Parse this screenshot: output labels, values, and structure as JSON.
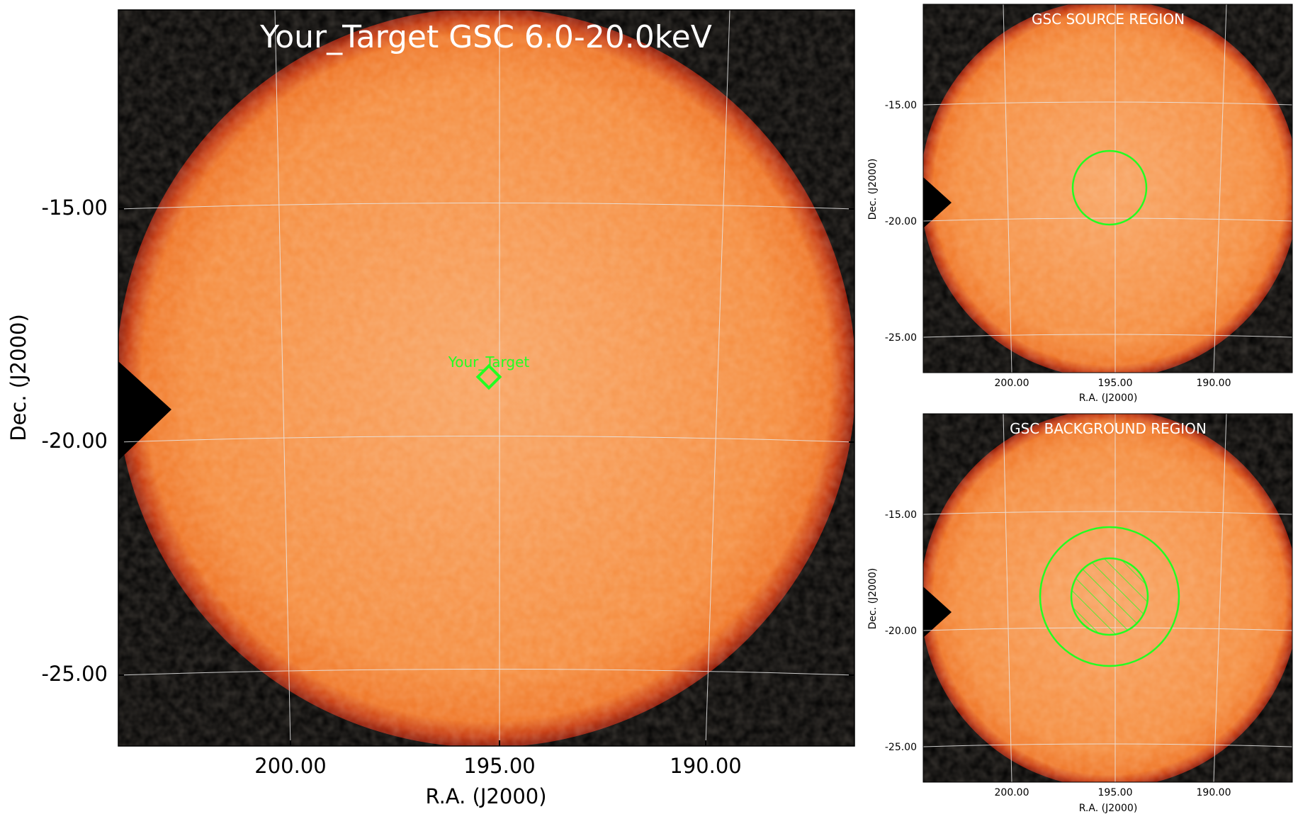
{
  "main_panel": {
    "title": "Your_Target GSC 6.0-20.0keV",
    "xlabel": "R.A. (J2000)",
    "ylabel": "Dec. (J2000)",
    "x_ticks": [
      "200.00",
      "195.00",
      "190.00"
    ],
    "y_ticks": [
      "-15.00",
      "-20.00",
      "-25.00"
    ],
    "target_label": "Your_Target"
  },
  "source_panel": {
    "title": "GSC SOURCE REGION",
    "xlabel": "R.A. (J2000)",
    "ylabel": "Dec. (J2000)",
    "x_ticks": [
      "200.00",
      "195.00",
      "190.00"
    ],
    "y_ticks": [
      "-15.00",
      "-20.00",
      "-25.00"
    ]
  },
  "background_panel": {
    "title": "GSC BACKGROUND REGION",
    "xlabel": "R.A. (J2000)",
    "ylabel": "Dec. (J2000)",
    "x_ticks": [
      "200.00",
      "195.00",
      "190.00"
    ],
    "y_ticks": [
      "-15.00",
      "-20.00",
      "-25.00"
    ]
  },
  "colors": {
    "sky_fill": "#f58b3c",
    "sky_center": "#f8a463",
    "sky_edge": "#8a1505",
    "frame_background": "#000000",
    "grid": "#e8e8e8",
    "region": "#22ff22",
    "title_text": "#ffffff"
  }
}
